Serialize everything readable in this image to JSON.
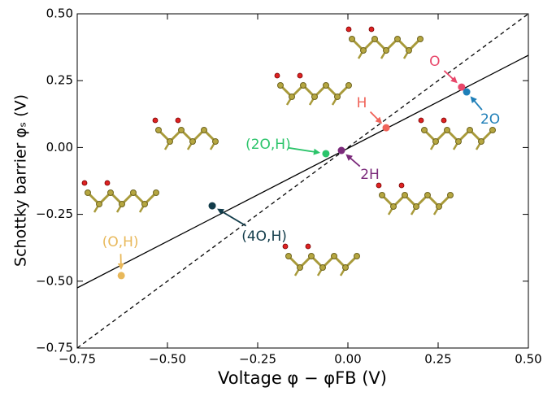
{
  "chart_data": {
    "type": "scatter",
    "xlabel": "Voltage φ − φFB (V)",
    "ylabel": "Schottky barrier φₛ (V)",
    "xlim": [
      -0.75,
      0.5
    ],
    "ylim": [
      -0.75,
      0.5
    ],
    "xticks": [
      {
        "value": -0.75,
        "label": "−0.75"
      },
      {
        "value": -0.5,
        "label": "−0.50"
      },
      {
        "value": -0.25,
        "label": "−0.25"
      },
      {
        "value": 0,
        "label": "0.00"
      },
      {
        "value": 0.25,
        "label": "0.25"
      },
      {
        "value": 0.5,
        "label": "0.50"
      }
    ],
    "yticks": [
      {
        "value": -0.75,
        "label": "−0.75"
      },
      {
        "value": -0.5,
        "label": "−0.50"
      },
      {
        "value": -0.25,
        "label": "−0.25"
      },
      {
        "value": 0,
        "label": "0.00"
      },
      {
        "value": 0.25,
        "label": "0.25"
      },
      {
        "value": 0.5,
        "label": "0.50"
      }
    ],
    "grid": false,
    "lines": [
      {
        "style": "dashed",
        "color": "#000000",
        "x": [
          -0.75,
          0.5
        ],
        "values": [
          -0.75,
          0.5
        ]
      },
      {
        "style": "solid",
        "color": "#000000",
        "x": [
          -0.75,
          0.5
        ],
        "values": [
          -0.525,
          0.345
        ]
      }
    ],
    "series": [
      {
        "name": "O",
        "color": "#e8476a",
        "x": [
          0.315
        ],
        "values": [
          0.226
        ]
      },
      {
        "name": "2O",
        "color": "#1f7fb8",
        "x": [
          0.329
        ],
        "values": [
          0.208
        ]
      },
      {
        "name": "H",
        "color": "#f0645a",
        "x": [
          0.106
        ],
        "values": [
          0.074
        ]
      },
      {
        "name": "(2O,H)",
        "color": "#2bc46a",
        "x": [
          -0.061
        ],
        "values": [
          -0.023
        ]
      },
      {
        "name": "2H",
        "color": "#7b2a7b",
        "x": [
          -0.018
        ],
        "values": [
          -0.011
        ]
      },
      {
        "name": "(4O,H)",
        "color": "#123c4a",
        "x": [
          -0.376
        ],
        "values": [
          -0.218
        ]
      },
      {
        "name": "(O,H)",
        "color": "#e8b85a",
        "x": [
          -0.628
        ],
        "values": [
          -0.479
        ]
      }
    ]
  }
}
